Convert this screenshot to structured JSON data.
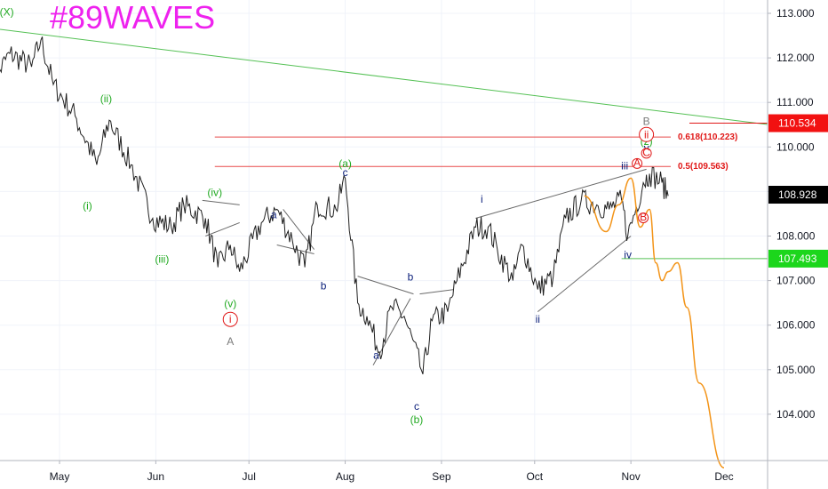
{
  "watermark": "#89WAVES",
  "colors": {
    "price": "#1f1f1f",
    "green": "#22aa22",
    "navy": "#0b1f7a",
    "red": "#e01818",
    "gray": "#7a7a7a",
    "projection": "#f39418",
    "fib": "#e84a4a",
    "trend": "#55c155",
    "wedge": "#6a6a6a",
    "watermark": "#ee22ee"
  },
  "chart_data": {
    "type": "line",
    "ylim": [
      103.0,
      113.3
    ],
    "y_ticks": [
      "113.000",
      "112.000",
      "111.000",
      "110.000",
      "109.000",
      "108.000",
      "107.000",
      "106.000",
      "105.000",
      "104.000"
    ],
    "x_ticks": [
      "May",
      "Jun",
      "Jul",
      "Aug",
      "Sep",
      "Oct",
      "Nov",
      "Dec"
    ],
    "series": [
      {
        "x": [
          "2019-04-09",
          "2019-04-15",
          "2019-04-22",
          "2019-04-25",
          "2019-04-29",
          "2019-05-06",
          "2019-05-13",
          "2019-05-17",
          "2019-05-24",
          "2019-05-31",
          "2019-06-06",
          "2019-06-10",
          "2019-06-17",
          "2019-06-21",
          "2019-06-25",
          "2019-06-28",
          "2019-07-05",
          "2019-07-10",
          "2019-07-15",
          "2019-07-19",
          "2019-07-23",
          "2019-07-29",
          "2019-08-01",
          "2019-08-05",
          "2019-08-08",
          "2019-08-12",
          "2019-08-16",
          "2019-08-20",
          "2019-08-26",
          "2019-08-29",
          "2019-09-03",
          "2019-09-06",
          "2019-09-12",
          "2019-09-16",
          "2019-09-19",
          "2019-09-24",
          "2019-09-27",
          "2019-10-02",
          "2019-10-07",
          "2019-10-11",
          "2019-10-16",
          "2019-10-21",
          "2019-10-25",
          "2019-10-29",
          "2019-10-31",
          "2019-11-05",
          "2019-11-07",
          "2019-11-11",
          "2019-11-13"
        ],
        "values": [
          111.4,
          112.1,
          111.8,
          112.4,
          111.4,
          110.7,
          109.6,
          110.6,
          109.6,
          108.4,
          108.2,
          108.7,
          108.4,
          107.3,
          107.8,
          107.2,
          108.3,
          108.6,
          107.9,
          107.3,
          108.7,
          108.6,
          109.3,
          106.5,
          106.2,
          105.4,
          106.4,
          106.2,
          104.9,
          106.1,
          106.3,
          107.0,
          108.2,
          108.2,
          107.7,
          107.0,
          107.8,
          106.8,
          107.1,
          108.4,
          108.8,
          108.7,
          108.6,
          108.8,
          108.0,
          109.2,
          109.4,
          109.2,
          108.9
        ]
      },
      {
        "name": "projection",
        "x": [
          "2019-10-17",
          "2019-10-24",
          "2019-10-28",
          "2019-11-01",
          "2019-11-04",
          "2019-11-07",
          "2019-11-09",
          "2019-11-11",
          "2019-11-13",
          "2019-11-16",
          "2019-11-19",
          "2019-11-23",
          "2019-12-01"
        ],
        "values": [
          108.9,
          108.1,
          108.7,
          109.3,
          108.2,
          108.6,
          107.4,
          107.0,
          107.2,
          107.4,
          106.4,
          104.7,
          102.8
        ]
      }
    ],
    "price_labels": [
      {
        "text": "110.534",
        "value": 110.534,
        "color": "#f21111"
      },
      {
        "text": "108.928",
        "value": 108.928,
        "color": "#000000"
      },
      {
        "text": "107.493",
        "value": 107.493,
        "color": "#1cd61c"
      }
    ],
    "fib_levels": [
      {
        "text": "0.618(110.223)",
        "value": 110.223
      },
      {
        "text": "0.5(109.563)",
        "value": 109.563
      }
    ],
    "wave_labels": [
      {
        "text": "(X)",
        "date": "2019-04-14",
        "value": 112.95,
        "color": "green"
      },
      {
        "text": "(ii)",
        "date": "2019-05-16",
        "value": 111.0,
        "color": "green"
      },
      {
        "text": "(i)",
        "date": "2019-05-10",
        "value": 108.6,
        "color": "green"
      },
      {
        "text": "(iii)",
        "date": "2019-06-03",
        "value": 107.4,
        "color": "green"
      },
      {
        "text": "(iv)",
        "date": "2019-06-20",
        "value": 108.9,
        "color": "green"
      },
      {
        "text": "(v)",
        "date": "2019-06-25",
        "value": 106.4,
        "color": "green"
      },
      {
        "text": "i",
        "date": "2019-06-25",
        "value": 106.05,
        "color": "red",
        "circled": true
      },
      {
        "text": "A",
        "date": "2019-06-25",
        "value": 105.55,
        "color": "gray",
        "big": true
      },
      {
        "text": "a",
        "date": "2019-07-09",
        "value": 108.4,
        "color": "navy"
      },
      {
        "text": "b",
        "date": "2019-07-25",
        "value": 106.8,
        "color": "navy"
      },
      {
        "text": "c",
        "date": "2019-08-01",
        "value": 109.35,
        "color": "navy"
      },
      {
        "text": "(a)",
        "date": "2019-08-01",
        "value": 109.55,
        "color": "green"
      },
      {
        "text": "a",
        "date": "2019-08-11",
        "value": 105.25,
        "color": "navy"
      },
      {
        "text": "b",
        "date": "2019-08-22",
        "value": 107.0,
        "color": "navy"
      },
      {
        "text": "c",
        "date": "2019-08-24",
        "value": 104.1,
        "color": "navy"
      },
      {
        "text": "(b)",
        "date": "2019-08-24",
        "value": 103.8,
        "color": "green"
      },
      {
        "text": "i",
        "date": "2019-09-14",
        "value": 108.75,
        "color": "navy"
      },
      {
        "text": "ii",
        "date": "2019-10-02",
        "value": 106.05,
        "color": "navy"
      },
      {
        "text": "iii",
        "date": "2019-10-30",
        "value": 109.5,
        "color": "navy"
      },
      {
        "text": "iv",
        "date": "2019-10-31",
        "value": 107.5,
        "color": "navy"
      },
      {
        "text": "y",
        "date": "2019-11-06",
        "value": 109.9,
        "color": "navy"
      },
      {
        "text": "(z)",
        "date": "2019-11-06",
        "value": 110.05,
        "color": "green"
      },
      {
        "text": "ii",
        "date": "2019-11-06",
        "value": 110.2,
        "color": "red",
        "circled": true
      },
      {
        "text": "A",
        "date": "2019-11-03",
        "value": 109.55,
        "color": "red",
        "circled": true,
        "small": true
      },
      {
        "text": "C",
        "date": "2019-11-06",
        "value": 109.78,
        "color": "red",
        "circled": true,
        "small": true
      },
      {
        "text": "B",
        "date": "2019-11-05",
        "value": 108.33,
        "color": "red",
        "circled": true,
        "small": true
      },
      {
        "text": "B",
        "date": "2019-11-06",
        "value": 110.5,
        "color": "gray",
        "big": true
      }
    ]
  }
}
